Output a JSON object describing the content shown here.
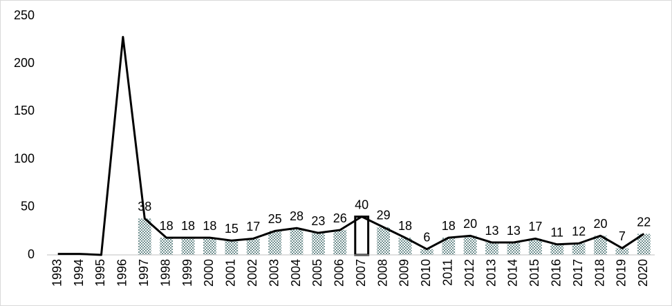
{
  "chart_data": {
    "type": "bar-line",
    "categories": [
      "1993",
      "1994",
      "1995",
      "1996",
      "1997",
      "1998",
      "1999",
      "2000",
      "2001",
      "2002",
      "2003",
      "2004",
      "2005",
      "2006",
      "2007",
      "2008",
      "2009",
      "2010",
      "2011",
      "2012",
      "2013",
      "2014",
      "2015",
      "2016",
      "2017",
      "2018",
      "2019",
      "2020"
    ],
    "series": [
      {
        "type": "bar",
        "color": "#6f8f8f",
        "values": [
          null,
          null,
          null,
          null,
          38,
          18,
          18,
          18,
          15,
          17,
          25,
          28,
          23,
          26,
          40,
          29,
          18,
          6,
          18,
          20,
          13,
          13,
          17,
          11,
          12,
          20,
          7,
          22
        ],
        "data_labels": true
      },
      {
        "type": "line",
        "color": "#000000",
        "values": [
          1,
          1,
          0,
          228,
          38,
          18,
          18,
          18,
          15,
          17,
          25,
          28,
          23,
          26,
          40,
          29,
          18,
          6,
          18,
          20,
          13,
          13,
          17,
          11,
          12,
          20,
          7,
          22
        ]
      }
    ],
    "highlighted_category": "2007",
    "ylim": [
      0,
      250
    ],
    "yticks": [
      0,
      50,
      100,
      150,
      200,
      250
    ],
    "grid": false
  }
}
